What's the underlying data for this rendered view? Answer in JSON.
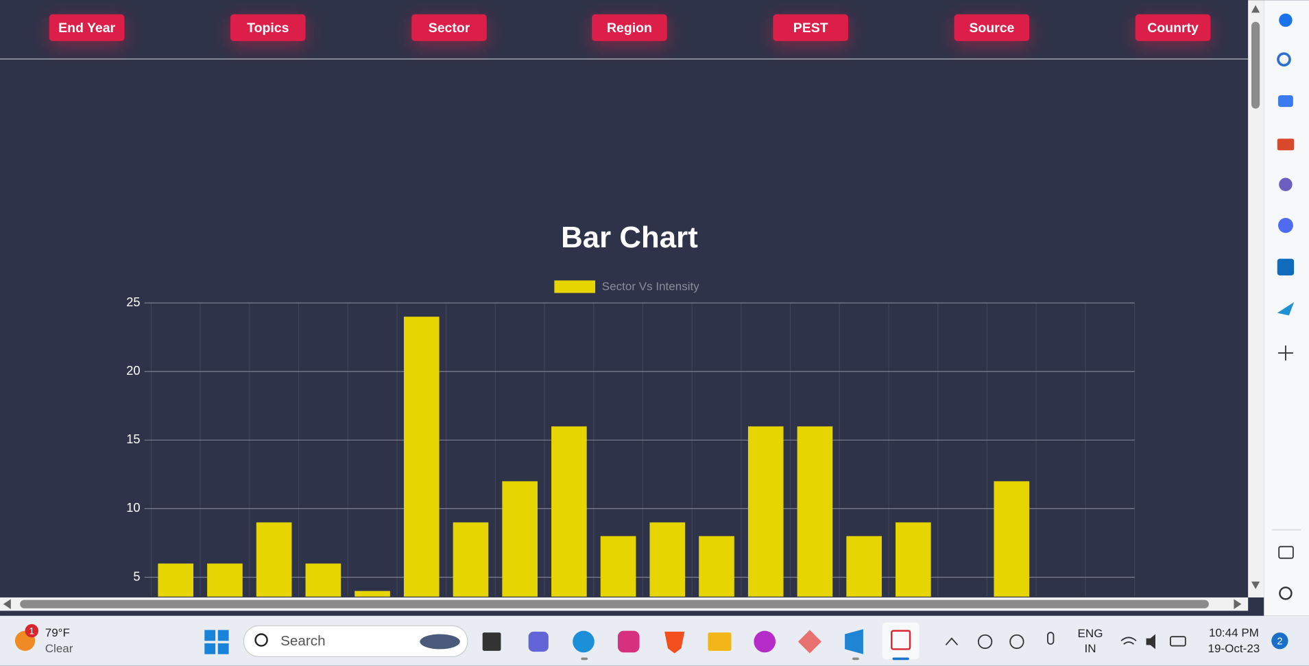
{
  "filters": [
    "End Year",
    "Topics",
    "Sector",
    "Region",
    "PEST",
    "Source",
    "Counrty"
  ],
  "chart_data": {
    "type": "bar",
    "title": "Bar Chart",
    "categories": [
      null,
      null,
      null,
      null,
      null,
      null,
      null,
      null,
      null,
      null,
      null,
      null,
      null,
      null,
      null,
      null,
      null,
      null,
      null,
      null
    ],
    "series": [
      {
        "name": "Sector Vs Intensity",
        "color": "#e6d500",
        "values": [
          6,
          6,
          9,
          6,
          4,
          24,
          9,
          12,
          16,
          8,
          9,
          8,
          16,
          16,
          8,
          9,
          0,
          12,
          0,
          0
        ]
      }
    ],
    "ylim": [
      0,
      25
    ],
    "yticks": [
      5,
      10,
      15,
      20,
      25
    ],
    "grid": true,
    "legend": "top"
  },
  "taskbar": {
    "weather_badge": "1",
    "temperature": "79°F",
    "condition": "Clear",
    "search": "Search",
    "language": "ENG",
    "region": "IN",
    "time": "10:44 PM",
    "date": "19-Oct-23",
    "notifications": "2"
  }
}
